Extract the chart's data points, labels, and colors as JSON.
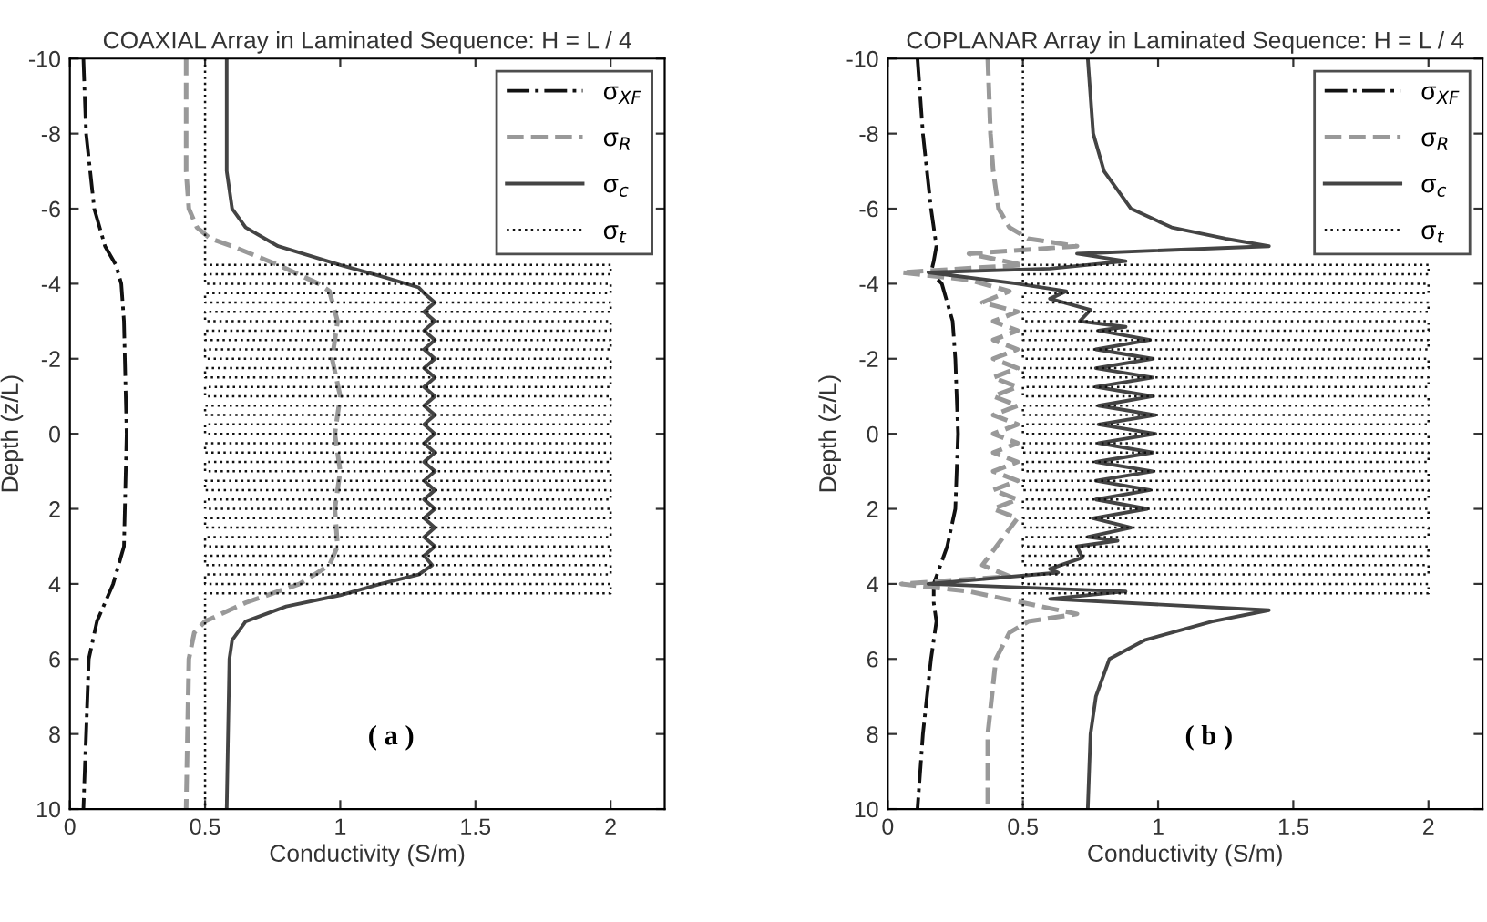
{
  "chart_data": [
    {
      "type": "line",
      "title": "COAXIAL Array in Laminated Sequence: H = L / 4",
      "xlabel": "Conductivity (S/m)",
      "ylabel": "Depth (z/L)",
      "xlim": [
        0,
        2.2
      ],
      "ylim": [
        10,
        -10
      ],
      "xticks": [
        0,
        0.5,
        1,
        1.5,
        2
      ],
      "yticks": [
        -10,
        -8,
        -6,
        -4,
        -2,
        0,
        2,
        4,
        6,
        8,
        10
      ],
      "legend": "top right",
      "annotations": [
        "( a )"
      ],
      "series": [
        {
          "name": "σ$_{XF}$",
          "color": "#111111",
          "line_style": "dashdot",
          "x": [
            0.05,
            0.06,
            0.09,
            0.13,
            0.17,
            0.19,
            0.2,
            0.21,
            0.2,
            0.18,
            0.16,
            0.1,
            0.07,
            0.06,
            0.05
          ],
          "values": [
            -10,
            -8,
            -6,
            -5,
            -4.5,
            -4,
            -3,
            0,
            3,
            3.5,
            4,
            5,
            6,
            8,
            10
          ]
        },
        {
          "name": "σ$_{R}$",
          "color": "#999999",
          "line_style": "dashed",
          "x": [
            0.43,
            0.43,
            0.44,
            0.47,
            0.52,
            0.6,
            0.77,
            0.92,
            0.96,
            0.99,
            0.97,
            1.0,
            0.98,
            1.0,
            0.98,
            0.99,
            0.96,
            0.85,
            0.65,
            0.5,
            0.46,
            0.44,
            0.43
          ],
          "values": [
            -10,
            -7,
            -6,
            -5.5,
            -5.2,
            -5,
            -4.5,
            -4,
            -3.8,
            -3,
            -2,
            -1,
            0,
            1,
            2,
            3,
            3.5,
            4,
            4.5,
            5,
            5.3,
            6,
            10
          ]
        },
        {
          "name": "σ$_{c}$",
          "color": "#444444",
          "line_style": "solid",
          "x": [
            0.58,
            0.58,
            0.6,
            0.65,
            0.77,
            1.0,
            1.15,
            1.29,
            1.31,
            1.35,
            1.31,
            1.35,
            1.31,
            1.35,
            1.31,
            1.35,
            1.31,
            1.35,
            1.31,
            1.35,
            1.31,
            1.35,
            1.31,
            1.35,
            1.31,
            1.35,
            1.31,
            1.35,
            1.31,
            1.35,
            1.31,
            1.35,
            1.31,
            1.35,
            1.31,
            1.35,
            1.31,
            1.34,
            1.29,
            1.15,
            1.0,
            0.8,
            0.65,
            0.6,
            0.59,
            0.58
          ],
          "values": [
            -10,
            -7,
            -6,
            -5.5,
            -5,
            -4.5,
            -4.2,
            -3.9,
            -3.75,
            -3.5,
            -3.25,
            -3,
            -2.75,
            -2.5,
            -2.25,
            -2,
            -1.75,
            -1.5,
            -1.25,
            -1,
            -0.75,
            -0.5,
            -0.25,
            0,
            0.25,
            0.5,
            0.75,
            1,
            1.25,
            1.5,
            1.75,
            2,
            2.25,
            2.5,
            2.75,
            3,
            3.25,
            3.5,
            3.75,
            4,
            4.3,
            4.6,
            5,
            5.5,
            6,
            10
          ]
        },
        {
          "name": "σ$_{t}$",
          "color": "#111111",
          "line_style": "dotted",
          "x": [
            0.5,
            0.5,
            2,
            2,
            0.5,
            0.5,
            2,
            2,
            0.5,
            0.5,
            2,
            2,
            0.5,
            0.5,
            2,
            2,
            0.5,
            0.5,
            2,
            2,
            0.5,
            0.5,
            2,
            2,
            0.5,
            0.5,
            2,
            2,
            0.5,
            0.5,
            2,
            2,
            0.5,
            0.5,
            2,
            2,
            0.5,
            0.5,
            2,
            2,
            0.5,
            0.5,
            2,
            2,
            0.5,
            0.5,
            2,
            2,
            0.5,
            0.5,
            2,
            2,
            0.5,
            0.5,
            2,
            2,
            0.5,
            0.5,
            2,
            2,
            0.5,
            0.5,
            2,
            2,
            0.5,
            0.5,
            2,
            2,
            0.5,
            0.5,
            2,
            2,
            0.5,
            0.5
          ],
          "values": [
            -10,
            -4.5,
            -4.5,
            -4.25,
            -4.25,
            -4,
            -4,
            -3.75,
            -3.75,
            -3.5,
            -3.5,
            -3.25,
            -3.25,
            -3,
            -3,
            -2.75,
            -2.75,
            -2.5,
            -2.5,
            -2.25,
            -2.25,
            -2,
            -2,
            -1.75,
            -1.75,
            -1.5,
            -1.5,
            -1.25,
            -1.25,
            -1,
            -1,
            -0.75,
            -0.75,
            -0.5,
            -0.5,
            -0.25,
            -0.25,
            0,
            0,
            0.25,
            0.25,
            0.5,
            0.5,
            0.75,
            0.75,
            1,
            1,
            1.25,
            1.25,
            1.5,
            1.5,
            1.75,
            1.75,
            2,
            2,
            2.25,
            2.25,
            2.5,
            2.5,
            2.75,
            2.75,
            3,
            3,
            3.25,
            3.25,
            3.5,
            3.5,
            3.75,
            3.75,
            4,
            4,
            4.25,
            4.25,
            10
          ]
        }
      ]
    },
    {
      "type": "line",
      "title": "COPLANAR Array in Laminated Sequence: H = L / 4",
      "xlabel": "Conductivity (S/m)",
      "ylabel": "Depth (z/L)",
      "xlim": [
        0,
        2.2
      ],
      "ylim": [
        10,
        -10
      ],
      "xticks": [
        0,
        0.5,
        1,
        1.5,
        2
      ],
      "yticks": [
        -10,
        -8,
        -6,
        -4,
        -2,
        0,
        2,
        4,
        6,
        8,
        10
      ],
      "legend": "top right",
      "annotations": [
        "( b )"
      ],
      "series": [
        {
          "name": "σ$_{XF}$",
          "color": "#111111",
          "line_style": "dashdot",
          "x": [
            0.11,
            0.13,
            0.16,
            0.18,
            0.17,
            0.16,
            0.2,
            0.24,
            0.25,
            0.26,
            0.25,
            0.22,
            0.19,
            0.17,
            0.17,
            0.18,
            0.16,
            0.13,
            0.11
          ],
          "values": [
            -10,
            -8,
            -6,
            -5,
            -4.6,
            -4.3,
            -4,
            -3,
            -2,
            0,
            2,
            3,
            3.6,
            4,
            4.5,
            5,
            6,
            8,
            10
          ]
        },
        {
          "name": "σ$_{R}$",
          "color": "#999999",
          "line_style": "dashed",
          "x": [
            0.37,
            0.38,
            0.39,
            0.41,
            0.45,
            0.52,
            0.7,
            0.3,
            0.5,
            0.05,
            0.3,
            0.45,
            0.35,
            0.48,
            0.39,
            0.48,
            0.39,
            0.48,
            0.39,
            0.48,
            0.39,
            0.48,
            0.39,
            0.48,
            0.39,
            0.48,
            0.39,
            0.48,
            0.39,
            0.48,
            0.39,
            0.48,
            0.39,
            0.48,
            0.39,
            0.48,
            0.35,
            0.45,
            0.05,
            0.3,
            0.5,
            0.7,
            0.52,
            0.45,
            0.4,
            0.37,
            0.37
          ],
          "values": [
            -10,
            -8,
            -7,
            -6,
            -5.5,
            -5.2,
            -5,
            -4.8,
            -4.5,
            -4.3,
            -4.1,
            -3.8,
            -3.5,
            -3.25,
            -3,
            -2.75,
            -2.5,
            -2.25,
            -2,
            -1.75,
            -1.5,
            -1.25,
            -1,
            -0.75,
            -0.5,
            -0.25,
            0,
            0.25,
            0.5,
            0.75,
            1,
            1.25,
            1.5,
            1.75,
            2,
            2.25,
            3.5,
            3.8,
            4,
            4.2,
            4.5,
            4.8,
            5,
            5.3,
            6,
            8,
            10
          ]
        },
        {
          "name": "σ$_{c}$",
          "color": "#444444",
          "line_style": "solid",
          "x": [
            0.74,
            0.76,
            0.8,
            0.9,
            1.05,
            1.25,
            1.41,
            0.7,
            0.88,
            0.6,
            0.15,
            0.48,
            0.66,
            0.6,
            0.75,
            0.71,
            0.88,
            0.78,
            0.97,
            0.77,
            0.98,
            0.77,
            0.98,
            0.77,
            0.98,
            0.78,
            0.99,
            0.78,
            0.99,
            0.78,
            0.98,
            0.77,
            0.98,
            0.77,
            0.97,
            0.77,
            0.96,
            0.76,
            0.9,
            0.74,
            0.85,
            0.7,
            0.72,
            0.6,
            0.63,
            0.15,
            0.88,
            0.6,
            1.41,
            1.2,
            0.95,
            0.82,
            0.77,
            0.75,
            0.74
          ],
          "values": [
            -10,
            -8,
            -7,
            -6,
            -5.5,
            -5.2,
            -5,
            -4.8,
            -4.6,
            -4.4,
            -4.3,
            -4,
            -3.8,
            -3.6,
            -3.3,
            -3,
            -2.85,
            -2.75,
            -2.5,
            -2.25,
            -2,
            -1.75,
            -1.5,
            -1.25,
            -1,
            -0.75,
            -0.5,
            -0.25,
            0,
            0.25,
            0.5,
            0.75,
            1,
            1.25,
            1.5,
            1.75,
            2,
            2.25,
            2.5,
            2.75,
            2.85,
            3,
            3.3,
            3.6,
            3.7,
            4,
            4.2,
            4.4,
            4.7,
            5,
            5.5,
            6,
            7,
            8,
            10
          ]
        },
        {
          "name": "σ$_{t}$",
          "color": "#111111",
          "line_style": "dotted",
          "x": [
            0.5,
            0.5,
            2,
            2,
            0.5,
            0.5,
            2,
            2,
            0.5,
            0.5,
            2,
            2,
            0.5,
            0.5,
            2,
            2,
            0.5,
            0.5,
            2,
            2,
            0.5,
            0.5,
            2,
            2,
            0.5,
            0.5,
            2,
            2,
            0.5,
            0.5,
            2,
            2,
            0.5,
            0.5,
            2,
            2,
            0.5,
            0.5,
            2,
            2,
            0.5,
            0.5,
            2,
            2,
            0.5,
            0.5,
            2,
            2,
            0.5,
            0.5,
            2,
            2,
            0.5,
            0.5,
            2,
            2,
            0.5,
            0.5,
            2,
            2,
            0.5,
            0.5,
            2,
            2,
            0.5,
            0.5,
            2,
            2,
            0.5,
            0.5,
            2,
            2,
            0.5,
            0.5
          ],
          "values": [
            -10,
            -4.5,
            -4.5,
            -4.25,
            -4.25,
            -4,
            -4,
            -3.75,
            -3.75,
            -3.5,
            -3.5,
            -3.25,
            -3.25,
            -3,
            -3,
            -2.75,
            -2.75,
            -2.5,
            -2.5,
            -2.25,
            -2.25,
            -2,
            -2,
            -1.75,
            -1.75,
            -1.5,
            -1.5,
            -1.25,
            -1.25,
            -1,
            -1,
            -0.75,
            -0.75,
            -0.5,
            -0.5,
            -0.25,
            -0.25,
            0,
            0,
            0.25,
            0.25,
            0.5,
            0.5,
            0.75,
            0.75,
            1,
            1,
            1.25,
            1.25,
            1.5,
            1.5,
            1.75,
            1.75,
            2,
            2,
            2.25,
            2.25,
            2.5,
            2.5,
            2.75,
            2.75,
            3,
            3,
            3.25,
            3.25,
            3.5,
            3.5,
            3.75,
            3.75,
            4,
            4,
            4.25,
            4.25,
            10
          ]
        }
      ]
    }
  ]
}
